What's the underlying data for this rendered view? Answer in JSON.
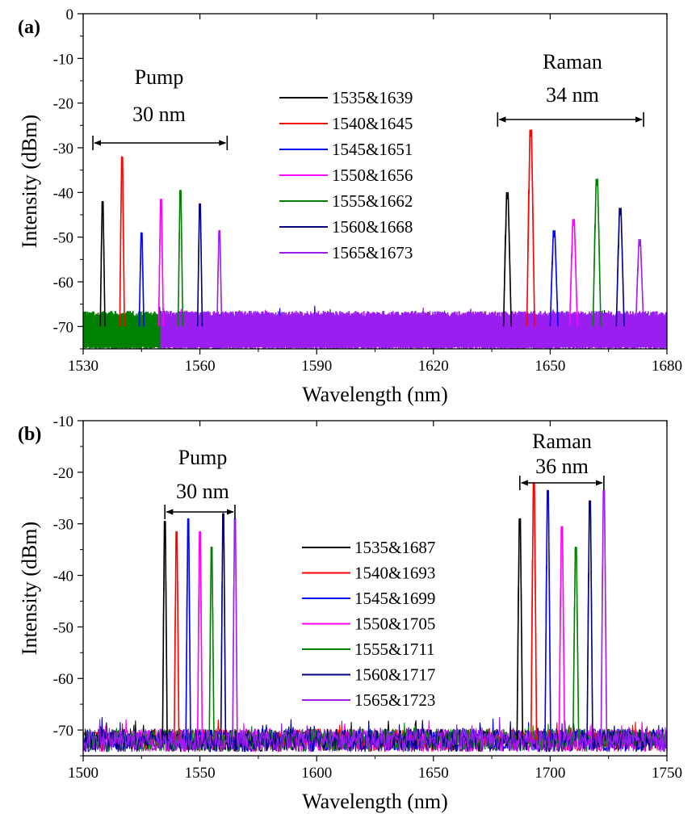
{
  "chart_data": [
    {
      "type": "line",
      "panel_label": "(a)",
      "xlabel": "Wavelength (nm)",
      "ylabel": "Intensity (dBm)",
      "xlim": [
        1530,
        1680
      ],
      "ylim": [
        -75,
        0
      ],
      "x_ticks": [
        1530,
        1560,
        1590,
        1620,
        1650,
        1680
      ],
      "y_ticks": [
        0,
        -10,
        -20,
        -30,
        -40,
        -50,
        -60,
        -70
      ],
      "x_tick_labels": [
        "1530",
        "1560",
        "1590",
        "1620",
        "1650",
        "1680"
      ],
      "y_tick_labels": [
        "0",
        "-10",
        "-20",
        "-30",
        "-40",
        "-50",
        "-60",
        "-70"
      ],
      "noise_floor_dBm": -70,
      "grid": false,
      "legend_position": "center",
      "annotations": [
        {
          "lines": [
            "Pump",
            "30 nm"
          ],
          "span": [
            1532.5,
            1567
          ]
        },
        {
          "lines": [
            "Raman",
            "34 nm"
          ],
          "span": [
            1636.5,
            1674
          ]
        }
      ],
      "series": [
        {
          "name": "1535&1639",
          "color": "#000000",
          "peaks": [
            {
              "x": 1535,
              "y": -43.5
            },
            {
              "x": 1639,
              "y": -41.5
            }
          ]
        },
        {
          "name": "1540&1645",
          "color": "#ff0000",
          "peaks": [
            {
              "x": 1540,
              "y": -33.5
            },
            {
              "x": 1645,
              "y": -27.5
            }
          ]
        },
        {
          "name": "1545&1651",
          "color": "#0000ff",
          "peaks": [
            {
              "x": 1545,
              "y": -50.5
            },
            {
              "x": 1651,
              "y": -50
            }
          ]
        },
        {
          "name": "1550&1656",
          "color": "#ff00ff",
          "peaks": [
            {
              "x": 1550,
              "y": -43
            },
            {
              "x": 1656,
              "y": -47.5
            }
          ]
        },
        {
          "name": "1555&1662",
          "color": "#008000",
          "peaks": [
            {
              "x": 1555,
              "y": -41
            },
            {
              "x": 1662,
              "y": -38.5
            }
          ]
        },
        {
          "name": "1560&1668",
          "color": "#000080",
          "peaks": [
            {
              "x": 1560,
              "y": -44
            },
            {
              "x": 1668,
              "y": -45
            }
          ]
        },
        {
          "name": "1565&1673",
          "color": "#9a1ef0",
          "peaks": [
            {
              "x": 1565,
              "y": -50
            },
            {
              "x": 1673,
              "y": -52
            }
          ]
        }
      ]
    },
    {
      "type": "line",
      "panel_label": "(b)",
      "xlabel": "Wavelength (nm)",
      "ylabel": "Intensity (dBm)",
      "xlim": [
        1500,
        1750
      ],
      "ylim": [
        -75,
        -10
      ],
      "x_ticks": [
        1500,
        1550,
        1600,
        1650,
        1700,
        1750
      ],
      "y_ticks": [
        -10,
        -20,
        -30,
        -40,
        -50,
        -60,
        -70
      ],
      "x_tick_labels": [
        "1500",
        "1550",
        "1600",
        "1650",
        "1700",
        "1750"
      ],
      "y_tick_labels": [
        "-10",
        "-20",
        "-30",
        "-40",
        "-50",
        "-60",
        "-70"
      ],
      "noise_floor_dBm": -72,
      "grid": false,
      "legend_position": "center",
      "annotations": [
        {
          "lines": [
            "Pump",
            "30 nm"
          ],
          "span": [
            1535,
            1565
          ]
        },
        {
          "lines": [
            "Raman",
            "36 nm"
          ],
          "span": [
            1687,
            1723
          ]
        }
      ],
      "series": [
        {
          "name": "1535&1687",
          "color": "#000000",
          "peaks": [
            {
              "x": 1535,
              "y": -31
            },
            {
              "x": 1687,
              "y": -30.5
            }
          ]
        },
        {
          "name": "1540&1693",
          "color": "#ff0000",
          "peaks": [
            {
              "x": 1540,
              "y": -33
            },
            {
              "x": 1693,
              "y": -23.5
            }
          ]
        },
        {
          "name": "1545&1699",
          "color": "#0000ff",
          "peaks": [
            {
              "x": 1545,
              "y": -30.5
            },
            {
              "x": 1699,
              "y": -25
            }
          ]
        },
        {
          "name": "1550&1705",
          "color": "#ff00ff",
          "peaks": [
            {
              "x": 1550,
              "y": -33
            },
            {
              "x": 1705,
              "y": -32
            }
          ]
        },
        {
          "name": "1555&1711",
          "color": "#008000",
          "peaks": [
            {
              "x": 1555,
              "y": -36
            },
            {
              "x": 1711,
              "y": -36
            }
          ]
        },
        {
          "name": "1560&1717",
          "color": "#000080",
          "peaks": [
            {
              "x": 1560,
              "y": -29.5
            },
            {
              "x": 1717,
              "y": -27
            }
          ]
        },
        {
          "name": "1565&1723",
          "color": "#9a1ef0",
          "peaks": [
            {
              "x": 1565,
              "y": -30.5
            },
            {
              "x": 1723,
              "y": -25
            }
          ]
        }
      ]
    }
  ]
}
